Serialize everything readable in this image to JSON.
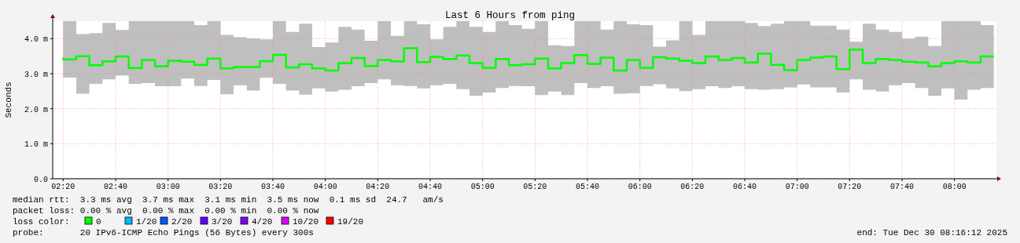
{
  "chart_data": {
    "type": "step",
    "title": "Last 6 Hours from ping",
    "ylabel": "Seconds",
    "x": [
      "2025-12-30T02:20",
      "2025-12-30T02:25",
      "2025-12-30T02:30",
      "2025-12-30T02:35",
      "2025-12-30T02:40",
      "2025-12-30T02:45",
      "2025-12-30T02:50",
      "2025-12-30T02:55",
      "2025-12-30T03:00",
      "2025-12-30T03:05",
      "2025-12-30T03:10",
      "2025-12-30T03:15",
      "2025-12-30T03:20",
      "2025-12-30T03:25",
      "2025-12-30T03:30",
      "2025-12-30T03:35",
      "2025-12-30T03:40",
      "2025-12-30T03:45",
      "2025-12-30T03:50",
      "2025-12-30T03:55",
      "2025-12-30T04:00",
      "2025-12-30T04:05",
      "2025-12-30T04:10",
      "2025-12-30T04:15",
      "2025-12-30T04:20",
      "2025-12-30T04:25",
      "2025-12-30T04:30",
      "2025-12-30T04:35",
      "2025-12-30T04:40",
      "2025-12-30T04:45",
      "2025-12-30T04:50",
      "2025-12-30T04:55",
      "2025-12-30T05:00",
      "2025-12-30T05:05",
      "2025-12-30T05:10",
      "2025-12-30T05:15",
      "2025-12-30T05:20",
      "2025-12-30T05:25",
      "2025-12-30T05:30",
      "2025-12-30T05:35",
      "2025-12-30T05:40",
      "2025-12-30T05:45",
      "2025-12-30T05:50",
      "2025-12-30T05:55",
      "2025-12-30T06:00",
      "2025-12-30T06:05",
      "2025-12-30T06:10",
      "2025-12-30T06:15",
      "2025-12-30T06:20",
      "2025-12-30T06:25",
      "2025-12-30T06:30",
      "2025-12-30T06:35",
      "2025-12-30T06:40",
      "2025-12-30T06:45",
      "2025-12-30T06:50",
      "2025-12-30T06:55",
      "2025-12-30T07:00",
      "2025-12-30T07:05",
      "2025-12-30T07:10",
      "2025-12-30T07:15",
      "2025-12-30T07:20",
      "2025-12-30T07:25",
      "2025-12-30T07:30",
      "2025-12-30T07:35",
      "2025-12-30T07:40",
      "2025-12-30T07:45",
      "2025-12-30T07:50",
      "2025-12-30T07:55",
      "2025-12-30T08:00",
      "2025-12-30T08:05",
      "2025-12-30T08:10",
      "2025-12-30T08:15"
    ],
    "series": [
      {
        "color": "#00ff00",
        "values": [
          3.46,
          3.41,
          3.5,
          3.24,
          3.35,
          3.49,
          3.16,
          3.39,
          3.21,
          3.37,
          3.34,
          3.25,
          3.43,
          3.15,
          3.19,
          3.19,
          3.36,
          3.54,
          3.18,
          3.27,
          3.15,
          3.09,
          3.3,
          3.45,
          3.22,
          3.39,
          3.35,
          3.73,
          3.33,
          3.48,
          3.42,
          3.52,
          3.3,
          3.17,
          3.42,
          3.24,
          3.27,
          3.43,
          3.15,
          3.3,
          3.53,
          3.28,
          3.46,
          3.09,
          3.39,
          3.17,
          3.47,
          3.43,
          3.37,
          3.3,
          3.49,
          3.39,
          3.45,
          3.32,
          3.57,
          3.25,
          3.1,
          3.39,
          3.46,
          3.49,
          3.13,
          3.69,
          3.3,
          3.42,
          3.39,
          3.34,
          3.32,
          3.21,
          3.3,
          3.35,
          3.32,
          3.49
        ],
        "lower": [
          2.88,
          2.89,
          2.43,
          2.71,
          2.84,
          2.95,
          2.71,
          2.73,
          2.64,
          2.64,
          2.86,
          2.65,
          2.82,
          2.41,
          2.67,
          2.52,
          2.88,
          2.71,
          2.52,
          2.4,
          2.58,
          2.49,
          2.54,
          2.64,
          2.73,
          2.84,
          2.67,
          2.65,
          2.58,
          2.67,
          2.71,
          2.56,
          2.37,
          2.46,
          2.59,
          2.65,
          2.64,
          2.39,
          2.49,
          2.39,
          2.73,
          2.59,
          2.64,
          2.43,
          2.44,
          2.65,
          2.7,
          2.58,
          2.5,
          2.56,
          2.64,
          2.59,
          2.64,
          2.56,
          2.54,
          2.56,
          2.61,
          2.69,
          2.61,
          2.61,
          2.46,
          2.84,
          2.54,
          2.49,
          2.67,
          2.73,
          2.59,
          2.37,
          2.58,
          2.26,
          2.54,
          2.59
        ],
        "upper": [
          4.5,
          4.5,
          4.13,
          4.16,
          4.45,
          4.25,
          4.5,
          4.5,
          4.5,
          4.5,
          4.5,
          4.39,
          4.5,
          4.11,
          4.04,
          4.01,
          3.98,
          4.5,
          4.19,
          4.43,
          3.76,
          3.89,
          4.34,
          4.26,
          3.94,
          4.5,
          4.08,
          4.5,
          4.41,
          3.98,
          4.34,
          4.5,
          4.34,
          4.19,
          4.5,
          4.39,
          4.28,
          4.5,
          3.81,
          3.79,
          4.5,
          4.5,
          4.26,
          4.5,
          4.41,
          4.39,
          3.77,
          3.95,
          4.5,
          4.11,
          4.5,
          4.5,
          4.5,
          4.45,
          4.36,
          4.43,
          4.5,
          4.5,
          4.37,
          4.37,
          4.26,
          3.91,
          4.43,
          4.26,
          4.19,
          4.0,
          4.06,
          3.79,
          4.5,
          4.5,
          4.5,
          4.39
        ]
      }
    ],
    "xlim": [
      "2025-12-30T02:16",
      "2025-12-30T08:16"
    ],
    "xticks": [
      {
        "value": "2025-12-30T02:20",
        "label": "02:20"
      },
      {
        "value": "2025-12-30T02:40",
        "label": "02:40"
      },
      {
        "value": "2025-12-30T03:00",
        "label": "03:00"
      },
      {
        "value": "2025-12-30T03:20",
        "label": "03:20"
      },
      {
        "value": "2025-12-30T03:40",
        "label": "03:40"
      },
      {
        "value": "2025-12-30T04:00",
        "label": "04:00"
      },
      {
        "value": "2025-12-30T04:20",
        "label": "04:20"
      },
      {
        "value": "2025-12-30T04:40",
        "label": "04:40"
      },
      {
        "value": "2025-12-30T05:00",
        "label": "05:00"
      },
      {
        "value": "2025-12-30T05:20",
        "label": "05:20"
      },
      {
        "value": "2025-12-30T05:40",
        "label": "05:40"
      },
      {
        "value": "2025-12-30T06:00",
        "label": "06:00"
      },
      {
        "value": "2025-12-30T06:20",
        "label": "06:20"
      },
      {
        "value": "2025-12-30T06:40",
        "label": "06:40"
      },
      {
        "value": "2025-12-30T07:00",
        "label": "07:00"
      },
      {
        "value": "2025-12-30T07:20",
        "label": "07:20"
      },
      {
        "value": "2025-12-30T07:40",
        "label": "07:40"
      },
      {
        "value": "2025-12-30T08:00",
        "label": "08:00"
      }
    ],
    "ylim": [
      0,
      4.5
    ],
    "yticks": [
      {
        "value": 0,
        "label": "0.0"
      },
      {
        "value": 1,
        "label": "1.0 m"
      },
      {
        "value": 2,
        "label": "2.0 m"
      },
      {
        "value": 3,
        "label": "3.0 m"
      },
      {
        "value": 4,
        "label": "4.0 m"
      }
    ],
    "grid": true,
    "line_style": "solid",
    "annotations": [
      "median rtt:  3.3 ms avg  3.7 ms max  3.1 ms min  3.5 ms now  0.1 ms sd  24.7   am/s",
      "packet loss: 0.00 % avg  0.00 % max  0.00 % min  0.00 % now",
      "loss color:",
      "0",
      "1/20",
      "2/20",
      "3/20",
      "4/20",
      "10/20",
      "19/20",
      "probe:       20 IPv6-ICMP Echo Pings (56 Bytes) every 300s",
      "end: Tue Dec 30 08:16:12 2025"
    ]
  }
}
